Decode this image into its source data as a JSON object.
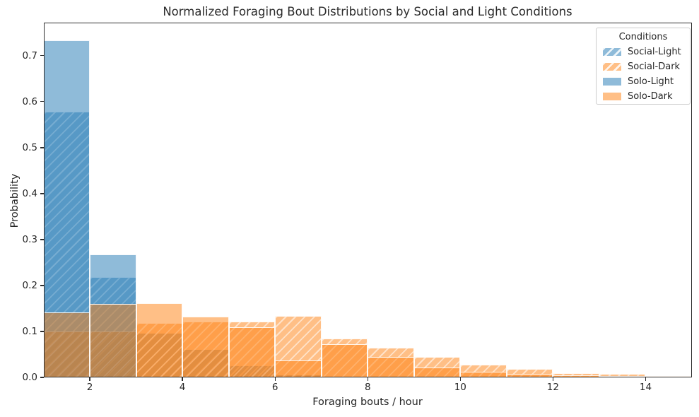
{
  "chart_data": {
    "type": "bar",
    "subtype": "overlapping-histogram",
    "title": "Normalized Foraging Bout Distributions by Social and Light Conditions",
    "xlabel": "Foraging bouts / hour",
    "ylabel": "Probability",
    "xlim": [
      1,
      15
    ],
    "ylim": [
      0,
      0.772
    ],
    "x_ticks": [
      2,
      4,
      6,
      8,
      10,
      12,
      14
    ],
    "y_ticks": [
      "0.0",
      "0.1",
      "0.2",
      "0.3",
      "0.4",
      "0.5",
      "0.6",
      "0.7"
    ],
    "bin_edges": [
      1,
      2,
      3,
      4,
      5,
      6,
      7,
      8,
      9,
      10,
      11,
      12,
      13,
      14,
      15
    ],
    "grid": false,
    "legend_title": "Conditions",
    "legend_position": "upper right",
    "series": [
      {
        "name": "Social-Light",
        "color": "#1f77b4",
        "alpha": 0.5,
        "hatch": "//",
        "values": [
          0.578,
          0.218,
          0.097,
          0.062,
          0.026,
          0.006,
          0,
          0,
          0,
          0,
          0,
          0,
          0,
          0
        ]
      },
      {
        "name": "Social-Dark",
        "color": "#ff7f0e",
        "alpha": 0.5,
        "hatch": "//",
        "values": [
          0.1,
          0.1,
          0.119,
          0.121,
          0.122,
          0.134,
          0.084,
          0.064,
          0.044,
          0.028,
          0.018,
          0.009,
          0.008,
          0.003
        ]
      },
      {
        "name": "Solo-Light",
        "color": "#1f77b4",
        "alpha": 0.5,
        "hatch": null,
        "values": [
          0.733,
          0.267,
          0,
          0,
          0,
          0,
          0,
          0,
          0,
          0,
          0,
          0,
          0,
          0
        ]
      },
      {
        "name": "Solo-Dark",
        "color": "#ff7f0e",
        "alpha": 0.5,
        "hatch": null,
        "values": [
          0.142,
          0.16,
          0.162,
          0.133,
          0.109,
          0.037,
          0.073,
          0.044,
          0.022,
          0.012,
          0.007,
          0.005,
          0.003,
          0
        ]
      }
    ]
  }
}
